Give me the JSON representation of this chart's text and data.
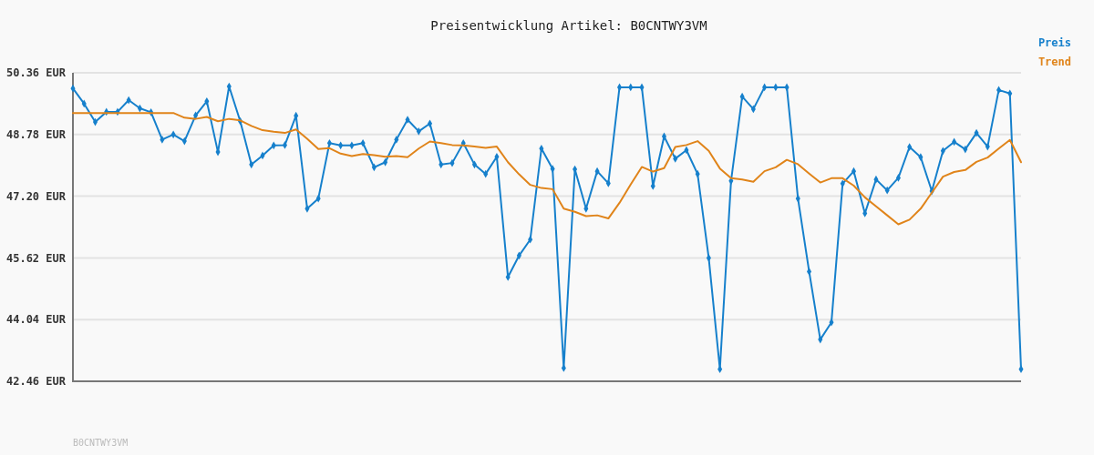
{
  "chart_data": {
    "type": "line",
    "title": "Preisentwicklung Artikel: B0CNTWY3VM",
    "categories": [
      null,
      null,
      null,
      null,
      null,
      null,
      null,
      null,
      null,
      null,
      null,
      null,
      null,
      null,
      null,
      null,
      null,
      null,
      null,
      null,
      null,
      null,
      null,
      null,
      null,
      null,
      null,
      null,
      null,
      null,
      null,
      null,
      null,
      null,
      null,
      null,
      null,
      null,
      null,
      null,
      null,
      null,
      null,
      null,
      null,
      null,
      null,
      null,
      null,
      null,
      null,
      null,
      null,
      null,
      null,
      null,
      null,
      null,
      null,
      null,
      null,
      null,
      null,
      null,
      null,
      null,
      null,
      null,
      null,
      null,
      null,
      null,
      null,
      null,
      null,
      null,
      null,
      null,
      null,
      null,
      null,
      null,
      null,
      null,
      null,
      null
    ],
    "series": [
      {
        "name": "Preis",
        "color": "#1680cc",
        "marker": "diamond",
        "values": [
          49.96,
          49.57,
          49.1,
          49.36,
          49.36,
          49.66,
          49.45,
          49.35,
          48.65,
          48.78,
          48.61,
          49.27,
          49.63,
          48.33,
          50.01,
          49.12,
          48.01,
          48.24,
          48.5,
          48.51,
          49.26,
          46.88,
          47.14,
          48.56,
          48.5,
          48.5,
          48.56,
          47.94,
          48.07,
          48.65,
          49.16,
          48.86,
          49.06,
          48.01,
          48.05,
          48.56,
          48.01,
          47.77,
          48.21,
          45.13,
          45.68,
          46.09,
          48.42,
          47.9,
          42.8,
          47.89,
          46.88,
          47.84,
          47.53,
          49.99,
          49.99,
          49.99,
          47.46,
          48.73,
          48.16,
          48.38,
          47.77,
          45.62,
          42.77,
          47.59,
          49.75,
          49.43,
          49.99,
          49.99,
          49.99,
          47.14,
          45.27,
          43.53,
          43.97,
          47.52,
          47.84,
          46.76,
          47.63,
          47.35,
          47.67,
          48.46,
          48.2,
          47.33,
          48.36,
          48.59,
          48.4,
          48.82,
          48.47,
          49.92,
          49.83,
          42.77
        ]
      },
      {
        "name": "Trend",
        "color": "#e0841a",
        "marker": "none",
        "values": [
          49.33,
          49.33,
          49.33,
          49.33,
          49.33,
          49.33,
          49.33,
          49.33,
          49.33,
          49.33,
          49.21,
          49.18,
          49.23,
          49.12,
          49.18,
          49.14,
          49.0,
          48.89,
          48.85,
          48.82,
          48.91,
          48.67,
          48.41,
          48.43,
          48.29,
          48.23,
          48.28,
          48.25,
          48.21,
          48.23,
          48.2,
          48.42,
          48.6,
          48.56,
          48.51,
          48.5,
          48.47,
          48.44,
          48.47,
          48.07,
          47.76,
          47.49,
          47.41,
          47.38,
          46.88,
          46.8,
          46.69,
          46.71,
          46.63,
          47.03,
          47.5,
          47.95,
          47.83,
          47.92,
          48.46,
          48.51,
          48.61,
          48.36,
          47.91,
          47.66,
          47.63,
          47.57,
          47.84,
          47.94,
          48.13,
          48.02,
          47.78,
          47.55,
          47.66,
          47.66,
          47.47,
          47.17,
          46.94,
          46.71,
          46.48,
          46.6,
          46.88,
          47.29,
          47.7,
          47.82,
          47.87,
          48.08,
          48.19,
          48.42,
          48.64,
          48.07
        ]
      }
    ],
    "ylim": [
      42.46,
      50.36
    ],
    "yticks": [
      {
        "value": 42.46,
        "label": "42.46 EUR"
      },
      {
        "value": 44.04,
        "label": "44.04 EUR"
      },
      {
        "value": 45.62,
        "label": "45.62 EUR"
      },
      {
        "value": 47.2,
        "label": "47.20 EUR"
      },
      {
        "value": 48.78,
        "label": "48.78 EUR"
      },
      {
        "value": 50.36,
        "label": "50.36 EUR"
      }
    ],
    "grid": "y",
    "legend": "top right",
    "tick_labels": "y",
    "annotations": [
      "B0CNTWY3VM"
    ]
  }
}
